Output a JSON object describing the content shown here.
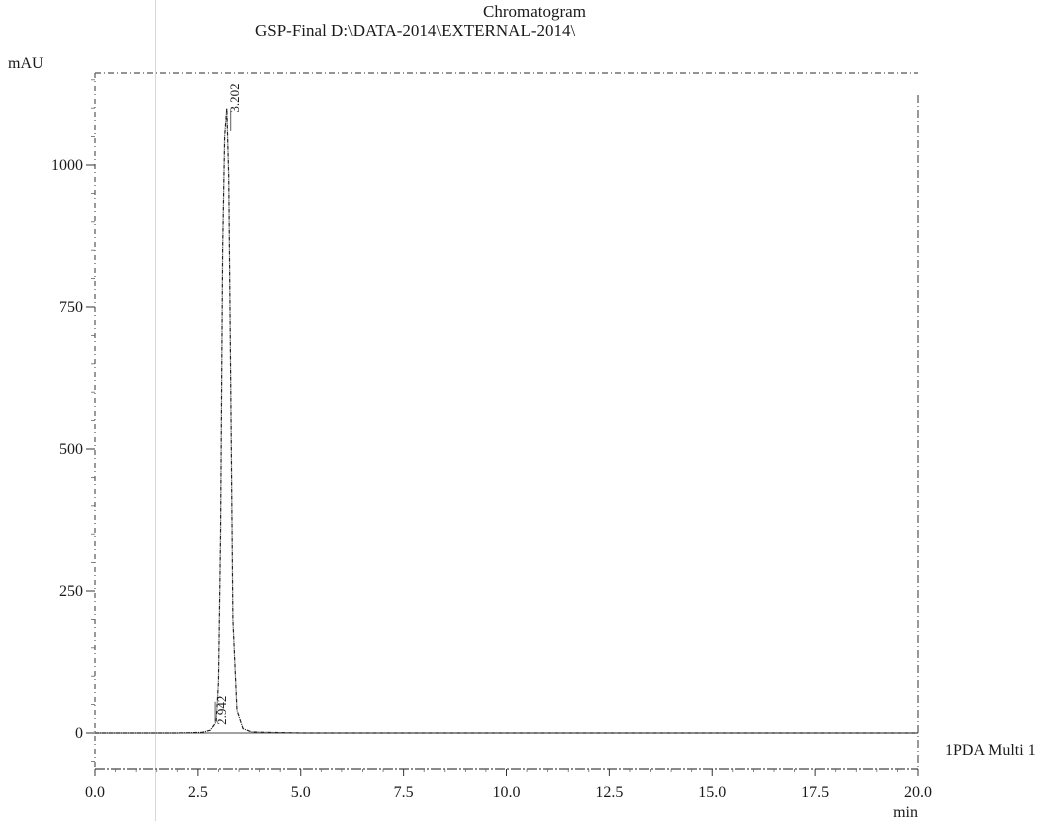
{
  "chart_data": {
    "type": "line",
    "title": "Chromatogram",
    "subtitle": "GSP-Final D:\\DATA-2014\\EXTERNAL-2014\\",
    "ylabel": "mAU",
    "xlabel": "min",
    "xlim": [
      0.0,
      20.0
    ],
    "ylim": [
      -62,
      1160
    ],
    "x_ticks": [
      "0.0",
      "2.5",
      "5.0",
      "7.5",
      "10.0",
      "12.5",
      "15.0",
      "17.5",
      "20.0"
    ],
    "y_ticks": [
      "0",
      "250",
      "500",
      "750",
      "1000"
    ],
    "grid": false,
    "series": [
      {
        "name": "1PDA Multi 1",
        "x": [
          0.0,
          1.0,
          2.0,
          2.6,
          2.8,
          2.9,
          2.942,
          3.0,
          3.05,
          3.1,
          3.15,
          3.202,
          3.25,
          3.3,
          3.35,
          3.45,
          3.6,
          3.8,
          4.2,
          5.0,
          10.0,
          15.0,
          20.0
        ],
        "y": [
          0,
          0,
          0,
          1,
          5,
          15,
          20,
          90,
          350,
          850,
          1050,
          1100,
          980,
          600,
          200,
          40,
          8,
          2,
          1,
          0,
          0,
          0,
          0
        ]
      }
    ],
    "annotations": [
      {
        "x": 3.202,
        "label": "3.202"
      },
      {
        "x": 2.942,
        "label": "2.942"
      }
    ]
  }
}
